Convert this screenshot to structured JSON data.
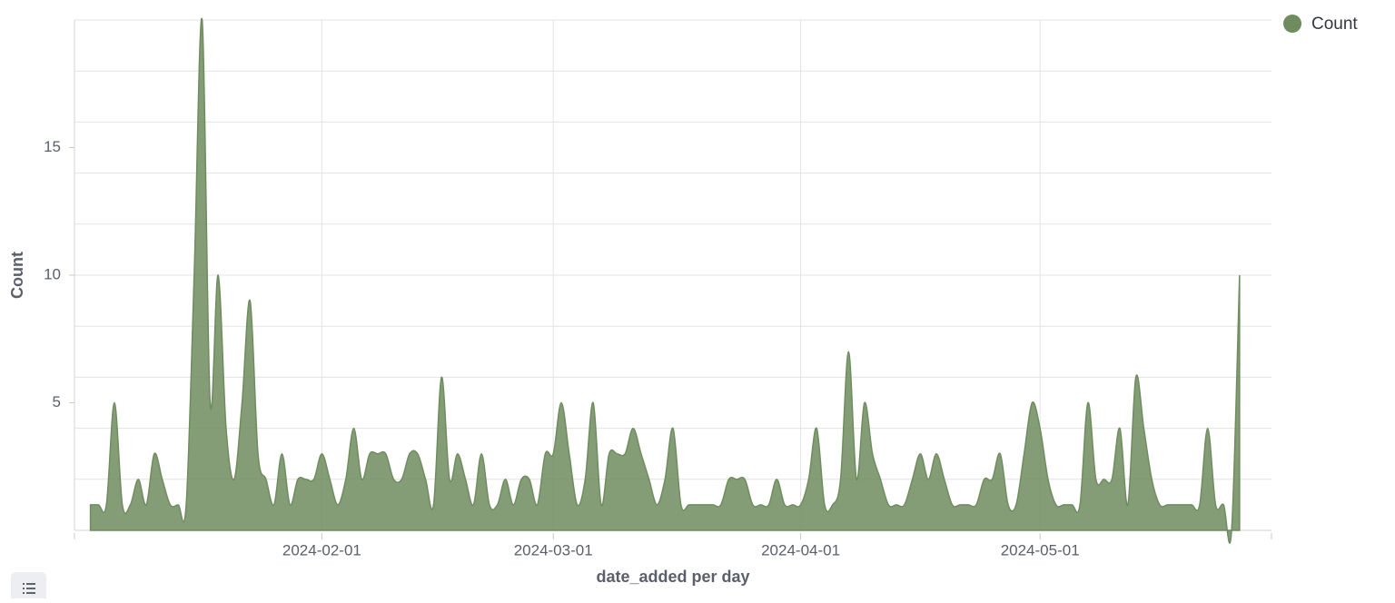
{
  "chart_data": {
    "type": "area",
    "x_label": "date_added per day",
    "y_label": "Count",
    "series": [
      {
        "name": "Count",
        "color": "#6f8c5f",
        "x": [
          "2024-01-03",
          "2024-01-04",
          "2024-01-05",
          "2024-01-06",
          "2024-01-07",
          "2024-01-08",
          "2024-01-09",
          "2024-01-10",
          "2024-01-11",
          "2024-01-12",
          "2024-01-13",
          "2024-01-14",
          "2024-01-15",
          "2024-01-16",
          "2024-01-17",
          "2024-01-18",
          "2024-01-19",
          "2024-01-20",
          "2024-01-21",
          "2024-01-22",
          "2024-01-23",
          "2024-01-24",
          "2024-01-25",
          "2024-01-26",
          "2024-01-27",
          "2024-01-28",
          "2024-01-29",
          "2024-01-30",
          "2024-01-31",
          "2024-02-01",
          "2024-02-02",
          "2024-02-03",
          "2024-02-04",
          "2024-02-05",
          "2024-02-06",
          "2024-02-07",
          "2024-02-08",
          "2024-02-09",
          "2024-02-10",
          "2024-02-11",
          "2024-02-12",
          "2024-02-13",
          "2024-02-14",
          "2024-02-15",
          "2024-02-16",
          "2024-02-17",
          "2024-02-18",
          "2024-02-19",
          "2024-02-20",
          "2024-02-21",
          "2024-02-22",
          "2024-02-23",
          "2024-02-24",
          "2024-02-25",
          "2024-02-26",
          "2024-02-27",
          "2024-02-28",
          "2024-02-29",
          "2024-03-01",
          "2024-03-02",
          "2024-03-03",
          "2024-03-04",
          "2024-03-05",
          "2024-03-06",
          "2024-03-07",
          "2024-03-08",
          "2024-03-09",
          "2024-03-10",
          "2024-03-11",
          "2024-03-12",
          "2024-03-13",
          "2024-03-14",
          "2024-03-15",
          "2024-03-16",
          "2024-03-17",
          "2024-03-18",
          "2024-03-19",
          "2024-03-20",
          "2024-03-21",
          "2024-03-22",
          "2024-03-23",
          "2024-03-24",
          "2024-03-25",
          "2024-03-26",
          "2024-03-27",
          "2024-03-28",
          "2024-03-29",
          "2024-03-30",
          "2024-03-31",
          "2024-04-01",
          "2024-04-02",
          "2024-04-03",
          "2024-04-04",
          "2024-04-05",
          "2024-04-06",
          "2024-04-07",
          "2024-04-08",
          "2024-04-09",
          "2024-04-10",
          "2024-04-11",
          "2024-04-12",
          "2024-04-13",
          "2024-04-14",
          "2024-04-15",
          "2024-04-16",
          "2024-04-17",
          "2024-04-18",
          "2024-04-19",
          "2024-04-20",
          "2024-04-21",
          "2024-04-22",
          "2024-04-23",
          "2024-04-24",
          "2024-04-25",
          "2024-04-26",
          "2024-04-27",
          "2024-04-28",
          "2024-04-29",
          "2024-04-30",
          "2024-05-01",
          "2024-05-02",
          "2024-05-03",
          "2024-05-04",
          "2024-05-05",
          "2024-05-06",
          "2024-05-07",
          "2024-05-08",
          "2024-05-09",
          "2024-05-10",
          "2024-05-11",
          "2024-05-12",
          "2024-05-13",
          "2024-05-14",
          "2024-05-15",
          "2024-05-16",
          "2024-05-17",
          "2024-05-18",
          "2024-05-19",
          "2024-05-20",
          "2024-05-21",
          "2024-05-22",
          "2024-05-23",
          "2024-05-24",
          "2024-05-25",
          "2024-05-26"
        ],
        "values": [
          1,
          1,
          1,
          5,
          1,
          1,
          2,
          1,
          3,
          2,
          1,
          1,
          1,
          10,
          20,
          5,
          10,
          4,
          2,
          5,
          9,
          3,
          2,
          1,
          3,
          1,
          2,
          2,
          2,
          3,
          2,
          1,
          2,
          4,
          2,
          3,
          3,
          3,
          2,
          2,
          3,
          3,
          2,
          1,
          6,
          2,
          3,
          2,
          1,
          3,
          1,
          1,
          2,
          1,
          2,
          2,
          1,
          3,
          3,
          5,
          3,
          1,
          2,
          5,
          1,
          3,
          3,
          3,
          4,
          3,
          2,
          1,
          2,
          4,
          1,
          1,
          1,
          1,
          1,
          1,
          2,
          2,
          2,
          1,
          1,
          1,
          2,
          1,
          1,
          1,
          2,
          4,
          1,
          1,
          2,
          7,
          2,
          5,
          3,
          2,
          1,
          1,
          1,
          2,
          3,
          2,
          3,
          2,
          1,
          1,
          1,
          1,
          2,
          2,
          3,
          1,
          1,
          3,
          5,
          4,
          2,
          1,
          1,
          1,
          1,
          5,
          2,
          2,
          2,
          4,
          1,
          6,
          4,
          2,
          1,
          1,
          1,
          1,
          1,
          1,
          4,
          1,
          1,
          0,
          10
        ]
      }
    ],
    "xlim": [
      "2024-01-01",
      "2024-05-30"
    ],
    "xticks": [
      "2024-02-01",
      "2024-03-01",
      "2024-04-01",
      "2024-05-01"
    ],
    "ylim": [
      0,
      20
    ],
    "yticks": [
      5,
      10,
      15
    ],
    "ygrid": [
      0,
      2,
      4,
      6,
      8,
      10,
      12,
      14,
      16,
      18,
      20
    ],
    "grid": true,
    "legend": "top-right"
  }
}
